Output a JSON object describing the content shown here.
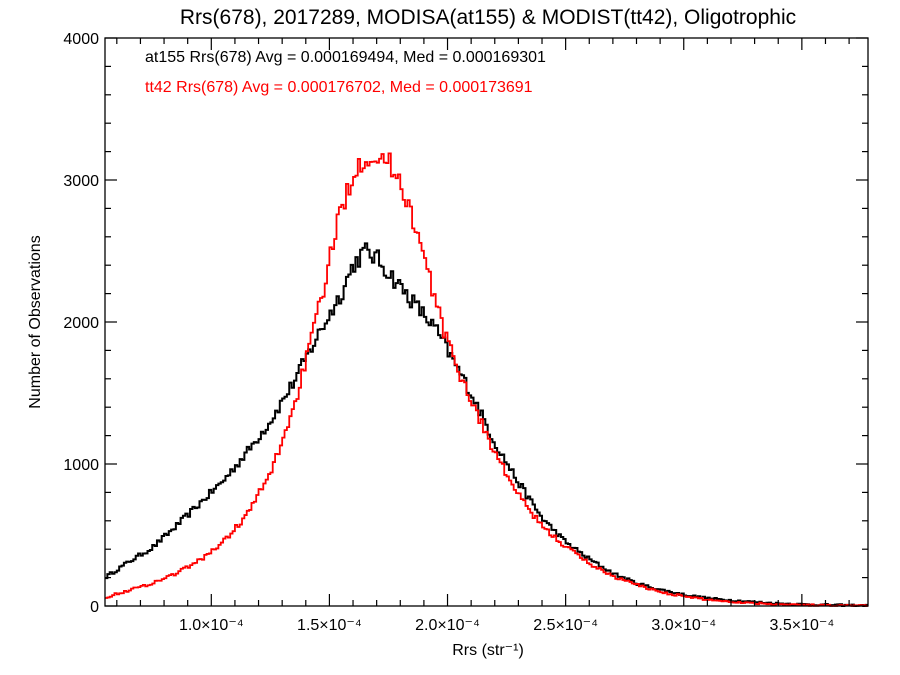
{
  "chart_data": {
    "type": "line",
    "title": "Rrs(678), 2017289, MODISA(at155) & MODIST(tt42), Oligotrophic",
    "xlabel": "Rrs (str⁻¹)",
    "ylabel": "Number of Observations",
    "xlim": [
      5.5e-05,
      0.000378
    ],
    "ylim": [
      0,
      4000
    ],
    "x_ticks": [
      {
        "value": 0.0001,
        "label": "1.0×10⁻⁴"
      },
      {
        "value": 0.00015,
        "label": "1.5×10⁻⁴"
      },
      {
        "value": 0.0002,
        "label": "2.0×10⁻⁴"
      },
      {
        "value": 0.00025,
        "label": "2.5×10⁻⁴"
      },
      {
        "value": 0.0003,
        "label": "3.0×10⁻⁴"
      },
      {
        "value": 0.00035,
        "label": "3.5×10⁻⁴"
      }
    ],
    "y_ticks": [
      {
        "value": 0,
        "label": "0"
      },
      {
        "value": 1000,
        "label": "1000"
      },
      {
        "value": 2000,
        "label": "2000"
      },
      {
        "value": 3000,
        "label": "3000"
      },
      {
        "value": 4000,
        "label": "4000"
      }
    ],
    "annotations": [
      {
        "text": "at155 Rrs(678) Avg = 0.000169494, Med = 0.000169301",
        "color": "#000000"
      },
      {
        "text": "tt42 Rrs(678) Avg = 0.000176702, Med = 0.000173691",
        "color": "#ff0000"
      }
    ],
    "x": [
      5.5e-05,
      6.5e-05,
      7.5e-05,
      8.5e-05,
      9.5e-05,
      0.000105,
      0.000115,
      0.000125,
      0.000135,
      0.000145,
      0.000155,
      0.00016,
      0.000165,
      0.00017,
      0.000175,
      0.00018,
      0.000185,
      0.00019,
      0.000195,
      0.0002,
      0.00021,
      0.00022,
      0.00023,
      0.00024,
      0.00025,
      0.00026,
      0.00027,
      0.00028,
      0.00029,
      0.0003,
      0.00031,
      0.00032,
      0.00033,
      0.00034,
      0.00035,
      0.00036,
      0.00037,
      0.000378
    ],
    "series": [
      {
        "name": "at155",
        "color": "#000000",
        "values": [
          200,
          310,
          410,
          560,
          720,
          880,
          1080,
          1300,
          1580,
          1900,
          2200,
          2400,
          2500,
          2450,
          2350,
          2250,
          2150,
          2050,
          1950,
          1800,
          1500,
          1150,
          870,
          620,
          450,
          330,
          230,
          160,
          115,
          80,
          55,
          40,
          28,
          18,
          12,
          8,
          5,
          3
        ]
      },
      {
        "name": "tt42",
        "color": "#ff0000",
        "values": [
          60,
          110,
          160,
          230,
          320,
          450,
          640,
          930,
          1400,
          2050,
          2800,
          3050,
          3170,
          3170,
          3120,
          3000,
          2750,
          2450,
          2150,
          1850,
          1450,
          1080,
          780,
          560,
          420,
          300,
          210,
          150,
          100,
          68,
          45,
          30,
          20,
          13,
          8,
          5,
          3,
          2
        ]
      }
    ]
  }
}
